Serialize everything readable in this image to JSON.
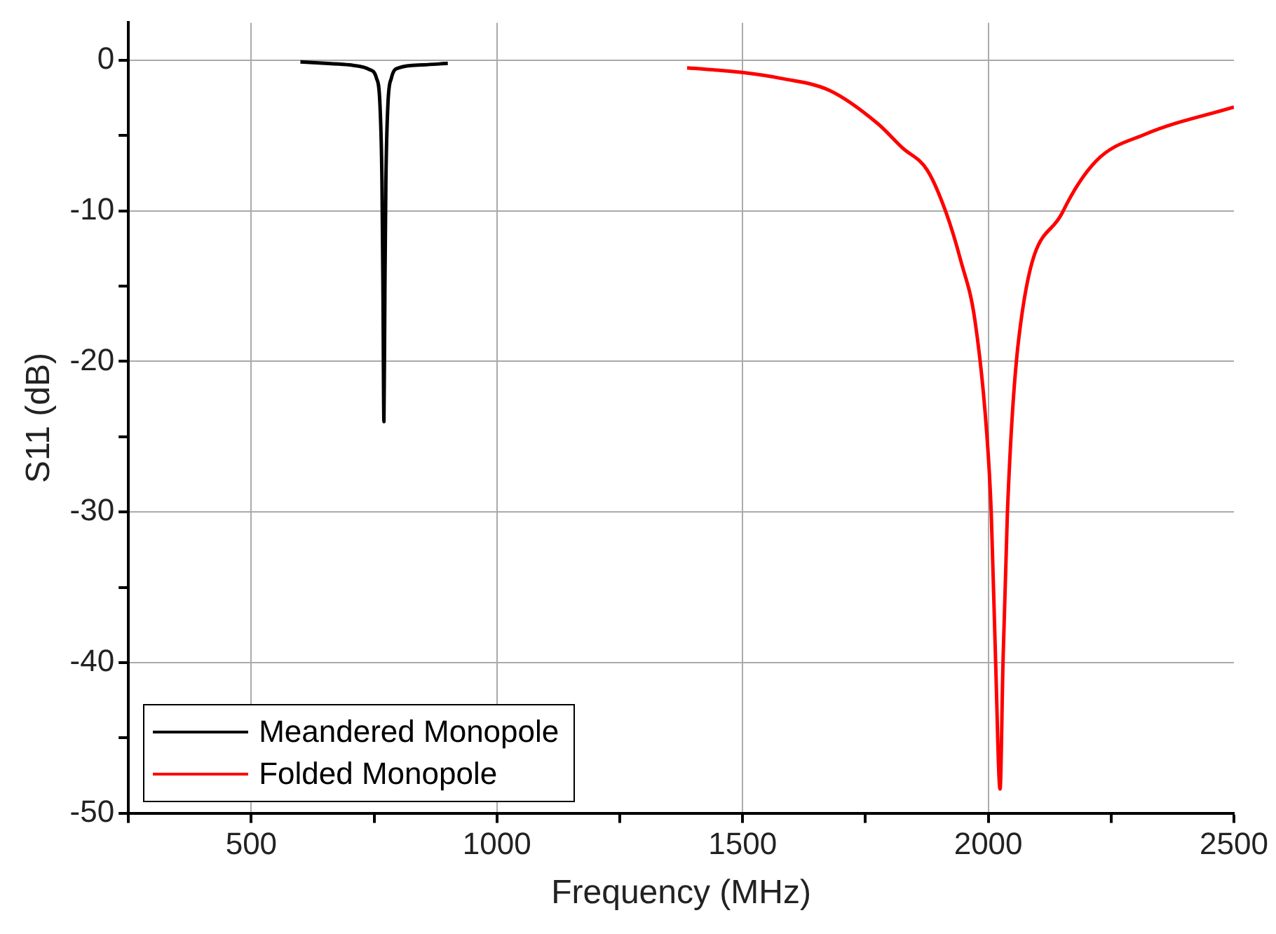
{
  "chart_data": {
    "type": "line",
    "xlabel": "Frequency (MHz)",
    "ylabel": "S11 (dB)",
    "xlim": [
      250,
      2500
    ],
    "xticks": [
      {
        "value": 250,
        "label": null
      },
      500,
      {
        "value": 750,
        "label": null
      },
      1000,
      {
        "value": 1250,
        "label": null
      },
      1500,
      {
        "value": 1750,
        "label": null
      },
      2000,
      {
        "value": 2250,
        "label": null
      },
      2500
    ],
    "ylim": [
      -50,
      2.5
    ],
    "yticks": [
      -50,
      {
        "value": -45,
        "label": null
      },
      -40,
      {
        "value": -35,
        "label": null
      },
      -30,
      {
        "value": -25,
        "label": null
      },
      -20,
      {
        "value": -15,
        "label": null
      },
      -10,
      {
        "value": -5,
        "label": null
      },
      0
    ],
    "grid": true,
    "legend": "bottom left",
    "marker": "none",
    "line_style": "solid",
    "series": [
      {
        "name": "Meandered Monopole",
        "color": "#000000",
        "x": [
          600,
          650,
          700,
          740,
          755,
          762,
          766,
          768,
          770,
          772,
          774,
          778,
          785,
          800,
          850,
          900
        ],
        "values": [
          -0.1,
          -0.2,
          -0.3,
          -0.6,
          -1.2,
          -3,
          -8,
          -15,
          -24,
          -15,
          -8,
          -3,
          -1.2,
          -0.5,
          -0.3,
          -0.2
        ]
      },
      {
        "name": "Folded Monopole",
        "color": "#ff0000",
        "x": [
          1387,
          1499,
          1579,
          1677,
          1775,
          1825,
          1876,
          1914,
          1944,
          1973,
          1997,
          2006,
          2015,
          2024,
          2030,
          2039,
          2062,
          2151,
          2219,
          2320,
          2500
        ],
        "values": [
          -0.5,
          -0.8,
          -1.2,
          -2,
          -4.2,
          -5.8,
          -7.3,
          -10.1,
          -13.3,
          -17.3,
          -24.8,
          -30,
          -40,
          -48.4,
          -40,
          -30,
          -18.5,
          -10.1,
          -6.7,
          -4.9,
          -3.1
        ]
      }
    ]
  }
}
